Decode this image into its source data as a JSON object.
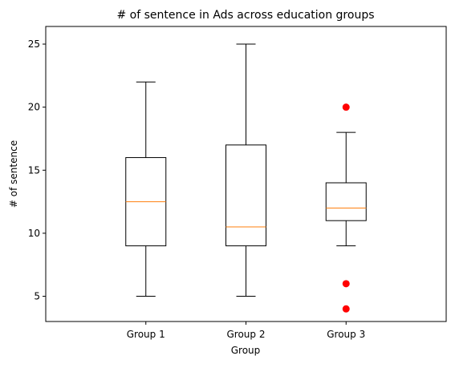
{
  "chart_data": {
    "type": "box",
    "title": "# of sentence in Ads across education groups",
    "xlabel": "Group",
    "ylabel": "# of sentence",
    "categories": [
      "Group 1",
      "Group 2",
      "Group 3"
    ],
    "ylim": [
      3,
      26.4
    ],
    "yticks": [
      5,
      10,
      15,
      20,
      25
    ],
    "ytick_labels": [
      "5",
      "10",
      "15",
      "20",
      "25"
    ],
    "grid": false,
    "boxes": [
      {
        "name": "Group 1",
        "whisker_low": 5,
        "q1": 9,
        "median": 12.5,
        "q3": 16,
        "whisker_high": 22,
        "outliers": []
      },
      {
        "name": "Group 2",
        "whisker_low": 5,
        "q1": 9,
        "median": 10.5,
        "q3": 17,
        "whisker_high": 25,
        "outliers": []
      },
      {
        "name": "Group 3",
        "whisker_low": 9,
        "q1": 11,
        "median": 12,
        "q3": 14,
        "whisker_high": 18,
        "outliers": [
          20,
          6,
          4
        ]
      }
    ],
    "colors": {
      "box": "#000000",
      "median": "#ff7f0e",
      "outlier": "#ff0000"
    }
  }
}
